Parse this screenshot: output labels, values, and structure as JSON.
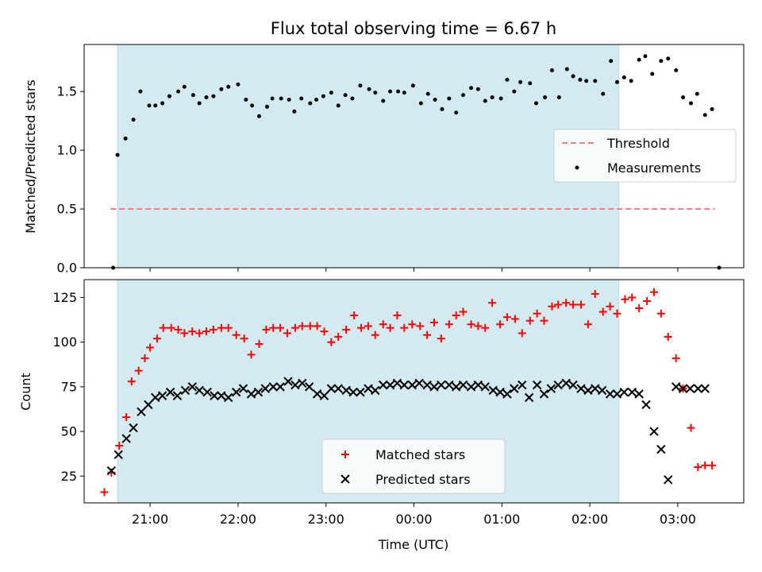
{
  "title": "Flux total observing time = 6.67 h",
  "colors": {
    "band": "#d2eaf0",
    "threshold": "#f08080",
    "measurement": "#000000",
    "matched": "#ff0000",
    "predicted": "#000000"
  },
  "chart_data": [
    {
      "type": "scatter",
      "ylabel": "Matched/Predicted stars",
      "xlim": [
        20.25,
        27.75
      ],
      "ylim": [
        0,
        1.9
      ],
      "yticks": [
        "0.0",
        "0.5",
        "1.0",
        "1.5"
      ],
      "ytick_values": [
        0,
        0.5,
        1.0,
        1.5
      ],
      "observing_window": [
        20.63,
        26.33
      ],
      "threshold": {
        "name": "Threshold",
        "value": 0.5,
        "x_range": [
          20.55,
          27.42
        ],
        "style": "dashed"
      },
      "legend": {
        "position": "center-right",
        "entries": [
          "Threshold",
          "Measurements"
        ]
      },
      "series": [
        {
          "name": "Measurements",
          "x": [
            20.58,
            20.63,
            20.72,
            20.81,
            20.89,
            20.99,
            21.06,
            21.14,
            21.22,
            21.32,
            21.39,
            21.49,
            21.56,
            21.64,
            21.72,
            21.81,
            21.89,
            22.0,
            22.09,
            22.16,
            22.24,
            22.33,
            22.39,
            22.49,
            22.58,
            22.64,
            22.72,
            22.82,
            22.89,
            22.97,
            23.06,
            23.14,
            23.22,
            23.3,
            23.39,
            23.49,
            23.56,
            23.65,
            23.73,
            23.82,
            23.89,
            23.99,
            24.08,
            24.16,
            24.24,
            24.32,
            24.4,
            24.48,
            24.56,
            24.65,
            24.73,
            24.81,
            24.89,
            24.99,
            25.06,
            25.14,
            25.21,
            25.32,
            25.39,
            25.49,
            25.57,
            25.65,
            25.74,
            25.81,
            25.89,
            25.96,
            26.06,
            26.15,
            26.24,
            26.31,
            26.39,
            26.47,
            26.56,
            26.63,
            26.71,
            26.81,
            26.89,
            26.98,
            27.06,
            27.15,
            27.22,
            27.31,
            27.39,
            27.47
          ],
          "y": [
            0.0,
            0.96,
            1.1,
            1.26,
            1.5,
            1.38,
            1.38,
            1.4,
            1.46,
            1.5,
            1.54,
            1.47,
            1.4,
            1.45,
            1.46,
            1.52,
            1.54,
            1.56,
            1.43,
            1.38,
            1.29,
            1.37,
            1.44,
            1.44,
            1.43,
            1.33,
            1.44,
            1.4,
            1.43,
            1.46,
            1.49,
            1.38,
            1.47,
            1.44,
            1.55,
            1.52,
            1.49,
            1.42,
            1.5,
            1.5,
            1.49,
            1.55,
            1.4,
            1.48,
            1.43,
            1.35,
            1.44,
            1.32,
            1.47,
            1.53,
            1.52,
            1.42,
            1.45,
            1.44,
            1.6,
            1.5,
            1.58,
            1.57,
            1.4,
            1.45,
            1.68,
            1.45,
            1.69,
            1.63,
            1.6,
            1.59,
            1.59,
            1.48,
            1.76,
            1.58,
            1.62,
            1.59,
            1.77,
            1.8,
            1.65,
            1.76,
            1.78,
            1.68,
            1.45,
            1.4,
            1.48,
            1.3,
            1.35,
            0.0
          ]
        }
      ]
    },
    {
      "type": "scatter",
      "xlabel": "Time (UTC)",
      "ylabel": "Count",
      "xlim": [
        20.25,
        27.75
      ],
      "ylim": [
        10,
        135
      ],
      "xticks": [
        "21:00",
        "22:00",
        "23:00",
        "00:00",
        "01:00",
        "02:00",
        "03:00"
      ],
      "xtick_values": [
        21,
        22,
        23,
        24,
        25,
        26,
        27
      ],
      "yticks": [
        "25",
        "50",
        "75",
        "100",
        "125"
      ],
      "ytick_values": [
        25,
        50,
        75,
        100,
        125
      ],
      "observing_window": [
        20.63,
        26.33
      ],
      "legend": {
        "position": "lower-center",
        "entries": [
          "Matched stars",
          "Predicted stars"
        ]
      },
      "series": [
        {
          "name": "Matched stars",
          "marker": "plus",
          "x": [
            20.48,
            20.56,
            20.65,
            20.73,
            20.79,
            20.87,
            20.94,
            21.0,
            21.08,
            21.15,
            21.24,
            21.32,
            21.39,
            21.48,
            21.56,
            21.64,
            21.72,
            21.81,
            21.89,
            21.98,
            22.07,
            22.15,
            22.24,
            22.32,
            22.4,
            22.48,
            22.56,
            22.65,
            22.73,
            22.82,
            22.9,
            22.98,
            23.06,
            23.14,
            23.23,
            23.32,
            23.4,
            23.48,
            23.56,
            23.65,
            23.73,
            23.81,
            23.89,
            23.98,
            24.07,
            24.15,
            24.23,
            24.31,
            24.4,
            24.48,
            24.56,
            24.65,
            24.73,
            24.81,
            24.89,
            24.98,
            25.06,
            25.15,
            25.23,
            25.32,
            25.4,
            25.48,
            25.57,
            25.64,
            25.73,
            25.81,
            25.9,
            25.98,
            26.06,
            26.15,
            26.23,
            26.31,
            26.4,
            26.48,
            26.56,
            26.65,
            26.73,
            26.81,
            26.89,
            26.98,
            27.06,
            27.15,
            27.23,
            27.31,
            27.39
          ],
          "y": [
            16,
            27,
            42,
            58,
            78,
            84,
            91,
            97,
            102,
            108,
            108,
            107,
            105,
            106,
            105,
            106,
            107,
            108,
            108,
            104,
            102,
            93,
            99,
            107,
            108,
            108,
            105,
            108,
            109,
            109,
            109,
            106,
            100,
            103,
            107,
            115,
            108,
            109,
            104,
            110,
            108,
            115,
            108,
            110,
            109,
            104,
            111,
            102,
            110,
            115,
            117,
            110,
            109,
            108,
            122,
            110,
            114,
            113,
            105,
            112,
            116,
            112,
            120,
            121,
            122,
            121,
            121,
            110,
            127,
            117,
            120,
            116,
            124,
            125,
            119,
            123,
            128,
            116,
            103,
            91,
            74,
            52,
            30,
            31,
            31
          ]
        },
        {
          "name": "Predicted stars",
          "marker": "x",
          "x": [
            20.56,
            20.64,
            20.73,
            20.81,
            20.9,
            20.98,
            21.06,
            21.14,
            21.23,
            21.31,
            21.4,
            21.48,
            21.56,
            21.65,
            21.73,
            21.81,
            21.89,
            21.98,
            22.06,
            22.15,
            22.23,
            22.31,
            22.4,
            22.48,
            22.57,
            22.65,
            22.73,
            22.81,
            22.9,
            22.98,
            23.06,
            23.14,
            23.23,
            23.31,
            23.39,
            23.48,
            23.56,
            23.65,
            23.73,
            23.81,
            23.89,
            23.98,
            24.06,
            24.15,
            24.23,
            24.31,
            24.4,
            24.48,
            24.56,
            24.65,
            24.73,
            24.81,
            24.9,
            24.98,
            25.06,
            25.14,
            25.23,
            25.31,
            25.4,
            25.48,
            25.56,
            25.64,
            25.73,
            25.81,
            25.9,
            25.98,
            26.06,
            26.14,
            26.23,
            26.31,
            26.39,
            26.48,
            26.56,
            26.64,
            26.73,
            26.81,
            26.89,
            26.98,
            27.06,
            27.14,
            27.23,
            27.31
          ],
          "y": [
            28,
            37,
            46,
            52,
            61,
            65,
            69,
            70,
            72,
            70,
            73,
            75,
            73,
            72,
            70,
            70,
            69,
            72,
            74,
            71,
            72,
            74,
            75,
            75,
            78,
            76,
            77,
            75,
            71,
            70,
            74,
            74,
            73,
            72,
            72,
            74,
            73,
            76,
            76,
            77,
            76,
            76,
            77,
            76,
            75,
            76,
            76,
            75,
            76,
            75,
            76,
            75,
            73,
            72,
            71,
            74,
            76,
            69,
            76,
            71,
            74,
            76,
            77,
            76,
            74,
            73,
            74,
            73,
            71,
            71,
            72,
            72,
            71,
            65,
            50,
            40,
            23,
            75,
            74,
            74,
            74,
            74
          ]
        }
      ]
    }
  ]
}
